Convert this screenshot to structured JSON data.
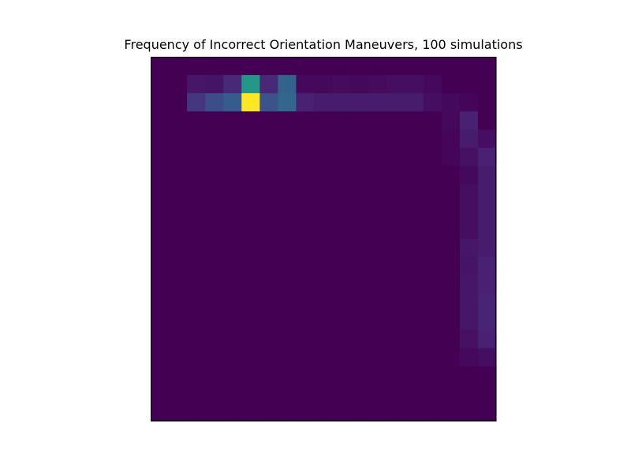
{
  "chart_data": {
    "type": "heatmap",
    "title": "Frequency of Incorrect Orientation Maneuvers, 100 simulations",
    "xlabel": "",
    "ylabel": "",
    "colormap": "viridis",
    "axes_ticks": false,
    "n_rows": 20,
    "n_cols": 19,
    "vmin": 0,
    "vmax": 1,
    "values": [
      [
        0,
        0,
        0,
        0,
        0,
        0,
        0,
        0,
        0,
        0,
        0,
        0,
        0,
        0,
        0,
        0,
        0,
        0,
        0
      ],
      [
        0,
        0,
        0.08,
        0.07,
        0.15,
        0.65,
        0.15,
        0.4,
        0.03,
        0.03,
        0.04,
        0.03,
        0.04,
        0.05,
        0.05,
        0.03,
        0,
        0,
        0
      ],
      [
        0,
        0,
        0.2,
        0.3,
        0.36,
        1.0,
        0.32,
        0.42,
        0.12,
        0.1,
        0.1,
        0.1,
        0.1,
        0.1,
        0.1,
        0.05,
        0.03,
        0.02,
        0
      ],
      [
        0,
        0,
        0,
        0,
        0,
        0,
        0,
        0,
        0,
        0,
        0,
        0,
        0,
        0,
        0,
        0,
        0.03,
        0.12,
        0
      ],
      [
        0,
        0,
        0,
        0,
        0,
        0,
        0,
        0,
        0,
        0,
        0,
        0,
        0,
        0,
        0,
        0,
        0.02,
        0.1,
        0.05
      ],
      [
        0,
        0,
        0,
        0,
        0,
        0,
        0,
        0,
        0,
        0,
        0,
        0,
        0,
        0,
        0,
        0,
        0.02,
        0.06,
        0.12
      ],
      [
        0,
        0,
        0,
        0,
        0,
        0,
        0,
        0,
        0,
        0,
        0,
        0,
        0,
        0,
        0,
        0,
        0,
        0.03,
        0.1
      ],
      [
        0,
        0,
        0,
        0,
        0,
        0,
        0,
        0,
        0,
        0,
        0,
        0,
        0,
        0,
        0,
        0,
        0,
        0.05,
        0.1
      ],
      [
        0,
        0,
        0,
        0,
        0,
        0,
        0,
        0,
        0,
        0,
        0,
        0,
        0,
        0,
        0,
        0,
        0,
        0.05,
        0.1
      ],
      [
        0,
        0,
        0,
        0,
        0,
        0,
        0,
        0,
        0,
        0,
        0,
        0,
        0,
        0,
        0,
        0,
        0,
        0.05,
        0.1
      ],
      [
        0,
        0,
        0,
        0,
        0,
        0,
        0,
        0,
        0,
        0,
        0,
        0,
        0,
        0,
        0,
        0,
        0,
        0.08,
        0.1
      ],
      [
        0,
        0,
        0,
        0,
        0,
        0,
        0,
        0,
        0,
        0,
        0,
        0,
        0,
        0,
        0,
        0,
        0,
        0.07,
        0.12
      ],
      [
        0,
        0,
        0,
        0,
        0,
        0,
        0,
        0,
        0,
        0,
        0,
        0,
        0,
        0,
        0,
        0,
        0,
        0.08,
        0.12
      ],
      [
        0,
        0,
        0,
        0,
        0,
        0,
        0,
        0,
        0,
        0,
        0,
        0,
        0,
        0,
        0,
        0,
        0,
        0.08,
        0.13
      ],
      [
        0,
        0,
        0,
        0,
        0,
        0,
        0,
        0,
        0,
        0,
        0,
        0,
        0,
        0,
        0,
        0,
        0,
        0.08,
        0.13
      ],
      [
        0,
        0,
        0,
        0,
        0,
        0,
        0,
        0,
        0,
        0,
        0,
        0,
        0,
        0,
        0,
        0,
        0,
        0.06,
        0.12
      ],
      [
        0,
        0,
        0,
        0,
        0,
        0,
        0,
        0,
        0,
        0,
        0,
        0,
        0,
        0,
        0,
        0,
        0,
        0.03,
        0.05
      ],
      [
        0,
        0,
        0,
        0,
        0,
        0,
        0,
        0,
        0,
        0,
        0,
        0,
        0,
        0,
        0,
        0,
        0,
        0,
        0
      ],
      [
        0,
        0,
        0,
        0,
        0,
        0,
        0,
        0,
        0,
        0,
        0,
        0,
        0,
        0,
        0,
        0,
        0,
        0,
        0
      ],
      [
        0,
        0,
        0,
        0,
        0,
        0,
        0,
        0,
        0,
        0,
        0,
        0,
        0,
        0,
        0,
        0,
        0,
        0,
        0
      ]
    ]
  }
}
